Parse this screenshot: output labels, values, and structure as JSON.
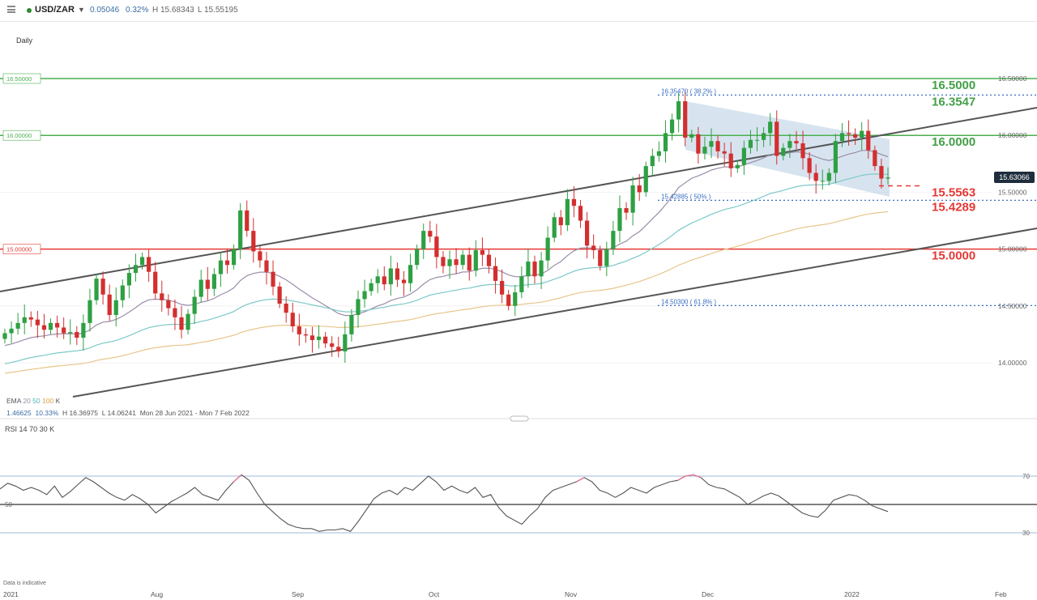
{
  "header": {
    "symbol": "USD/ZAR",
    "change": "0.05046",
    "change_pct": "0.32%",
    "high": "H 15.68343",
    "low": "L 15.55195",
    "timeframe": "Daily",
    "symbol_color": "#2e8b2e"
  },
  "legend": {
    "ema_label": "EMA",
    "ema_periods": [
      "20",
      "50",
      "100"
    ],
    "ema_colors": [
      "#9b8ca8",
      "#7ec8c8",
      "#e8c58a"
    ],
    "close_mark": "K",
    "stat1": "1.46625",
    "stat2": "10.33%",
    "stat_high": "H 16.36975",
    "stat_low": "L 14.06241",
    "range": "Mon 28 Jun 2021 - Mon 7 Feb 2022"
  },
  "rsi": {
    "label": "RSI",
    "period": "14",
    "upper": "70",
    "lower": "30",
    "close_mark": "K",
    "line_upper_label": "70",
    "line_mid_label": "50",
    "line_lower_label": "30",
    "values": [
      61,
      65,
      63,
      60,
      62,
      60,
      57,
      63,
      55,
      59,
      64,
      69,
      66,
      62,
      58,
      55,
      53,
      57,
      54,
      50,
      44,
      48,
      52,
      55,
      58,
      62,
      57,
      55,
      53,
      60,
      66,
      71,
      67,
      58,
      50,
      45,
      40,
      36,
      34,
      33,
      33,
      31,
      32,
      32,
      33,
      31,
      38,
      46,
      54,
      58,
      60,
      57,
      62,
      60,
      65,
      70,
      66,
      60,
      63,
      60,
      58,
      62,
      55,
      57,
      48,
      42,
      39,
      36,
      42,
      47,
      55,
      60,
      62,
      64,
      66,
      69,
      66,
      60,
      58,
      55,
      58,
      62,
      60,
      58,
      62,
      64,
      66,
      67,
      70,
      71,
      69,
      64,
      62,
      61,
      58,
      55,
      50,
      53,
      56,
      58,
      56,
      52,
      48,
      44,
      42,
      41,
      46,
      53,
      55,
      57,
      56,
      53,
      49,
      47,
      45
    ]
  },
  "disclaimer": "Data is indicative",
  "last_price": "15.63066",
  "annotations": {
    "fib_382": "16.35470 ( 38.2% )",
    "fib_50": "15.42885 ( 50% )",
    "fib_618": "14.50300 ( 61.8% )",
    "lvl_16_5": "16.5000",
    "lvl_16_35": "16.3547",
    "lvl_16": "16.0000",
    "lvl_15_55": "15.5563",
    "lvl_15_43": "15.4289",
    "lvl_15": "15.0000",
    "left_16_5": "16.50000",
    "left_16": "16.00000",
    "left_15": "15.00000"
  },
  "chart_data": {
    "type": "candlestick",
    "symbol": "USD/ZAR",
    "ylim": [
      13.65,
      16.7
    ],
    "y_ticks": [
      "16.50000",
      "16.00000",
      "15.50000",
      "15.00000",
      "14.50000",
      "14.00000"
    ],
    "y_tick_values": [
      16.5,
      16.0,
      15.5,
      15.0,
      14.5,
      14.0
    ],
    "x_ticks": [
      "2021",
      "Aug",
      "Sep",
      "Oct",
      "Nov",
      "Dec",
      "2022",
      "Feb"
    ],
    "horizontal_levels": [
      {
        "value": 16.5,
        "color": "#4caf50"
      },
      {
        "value": 16.0,
        "color": "#4caf50"
      },
      {
        "value": 15.0,
        "color": "#e53935"
      }
    ],
    "fib_levels": [
      16.3547,
      15.42885,
      14.503
    ],
    "candle_colors": {
      "up": "#2ea043",
      "down": "#d32f2f"
    },
    "close": [
      14.26,
      14.3,
      14.35,
      14.4,
      14.38,
      14.33,
      14.29,
      14.35,
      14.31,
      14.26,
      14.27,
      14.22,
      14.35,
      14.55,
      14.74,
      14.6,
      14.42,
      14.55,
      14.68,
      14.79,
      14.86,
      14.93,
      14.8,
      14.61,
      14.55,
      14.48,
      14.4,
      14.29,
      14.43,
      14.58,
      14.73,
      14.65,
      14.78,
      14.9,
      14.86,
      15.0,
      15.34,
      15.16,
      14.98,
      14.9,
      14.8,
      14.67,
      14.52,
      14.44,
      14.32,
      14.25,
      14.24,
      14.2,
      14.23,
      14.17,
      14.14,
      14.1,
      14.25,
      14.42,
      14.56,
      14.63,
      14.7,
      14.76,
      14.69,
      14.83,
      14.73,
      14.7,
      14.86,
      15.0,
      15.16,
      15.11,
      14.93,
      14.85,
      14.91,
      14.86,
      14.95,
      14.81,
      14.99,
      14.95,
      14.85,
      14.72,
      14.6,
      14.5,
      14.62,
      14.76,
      14.89,
      14.76,
      14.9,
      15.1,
      15.28,
      15.21,
      15.44,
      15.38,
      15.25,
      15.03,
      14.99,
      14.85,
      15.0,
      15.16,
      15.36,
      15.32,
      15.56,
      15.5,
      15.73,
      15.82,
      15.86,
      16.02,
      16.14,
      16.3,
      15.98,
      16.01,
      15.84,
      15.9,
      15.95,
      15.86,
      15.84,
      15.71,
      15.74,
      15.89,
      15.96,
      15.96,
      16.02,
      16.12,
      15.82,
      15.89,
      15.95,
      15.93,
      15.8,
      15.67,
      15.6,
      15.6,
      15.67,
      15.95,
      16.02,
      16.01,
      15.98,
      16.04,
      15.87,
      15.73,
      15.62,
      15.63
    ]
  }
}
